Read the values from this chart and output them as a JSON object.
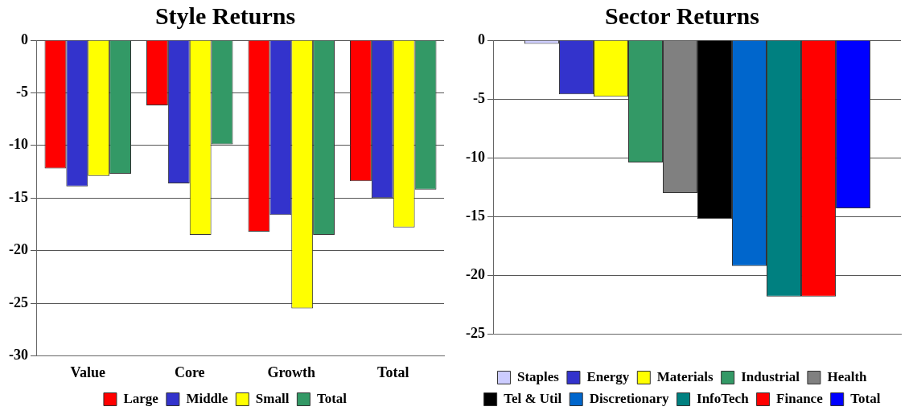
{
  "chart_data": [
    {
      "type": "bar",
      "title": "Style Returns",
      "categories": [
        "Value",
        "Core",
        "Growth",
        "Total"
      ],
      "ylim": [
        -30,
        0
      ],
      "yticks": [
        -30,
        -25,
        -20,
        -15,
        -10,
        -5,
        0
      ],
      "grid": "y",
      "legend": "bottom",
      "series": [
        {
          "name": "Large",
          "color": "#ff0000",
          "values": [
            -12.2,
            -6.2,
            -18.2,
            -13.4
          ]
        },
        {
          "name": "Middle",
          "color": "#3333cc",
          "values": [
            -13.9,
            -13.6,
            -16.6,
            -15.0
          ]
        },
        {
          "name": "Small",
          "color": "#ffff00",
          "values": [
            -12.9,
            -18.5,
            -25.5,
            -17.8
          ]
        },
        {
          "name": "Total",
          "color": "#339966",
          "values": [
            -12.7,
            -9.9,
            -18.5,
            -14.2
          ]
        }
      ]
    },
    {
      "type": "bar",
      "title": "Sector Returns",
      "categories": [
        null
      ],
      "ylim": [
        -25,
        0
      ],
      "yticks": [
        -25,
        -20,
        -15,
        -10,
        -5,
        0
      ],
      "grid": "y",
      "legend": "bottom",
      "series": [
        {
          "name": "Staples",
          "color": "#ccccff",
          "values": [
            -0.3
          ]
        },
        {
          "name": "Energy",
          "color": "#3333cc",
          "values": [
            -4.6
          ]
        },
        {
          "name": "Materials",
          "color": "#ffff00",
          "values": [
            -4.8
          ]
        },
        {
          "name": "Industrial",
          "color": "#339966",
          "values": [
            -10.4
          ]
        },
        {
          "name": "Health",
          "color": "#808080",
          "values": [
            -13.0
          ]
        },
        {
          "name": "Tel & Util",
          "color": "#000000",
          "values": [
            -15.2
          ]
        },
        {
          "name": "Discretionary",
          "color": "#0066cc",
          "values": [
            -19.2
          ]
        },
        {
          "name": "InfoTech",
          "color": "#008080",
          "values": [
            -21.8
          ]
        },
        {
          "name": "Finance",
          "color": "#ff0000",
          "values": [
            -21.8
          ]
        },
        {
          "name": "Total",
          "color": "#0000ff",
          "values": [
            -14.3
          ]
        }
      ]
    }
  ]
}
